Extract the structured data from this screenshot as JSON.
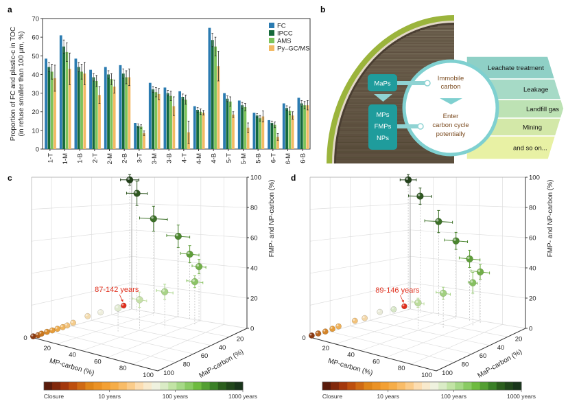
{
  "panels": {
    "a": "a",
    "b": "b",
    "c": "c",
    "d": "d"
  },
  "chart_data": [
    {
      "panel": "a",
      "type": "bar",
      "ylabel_line1": "Proportion of FC and plastic-c in TOC",
      "ylabel_line2": "(in refuse smaller than 100 μm, %)",
      "ylim": [
        0,
        70
      ],
      "yticks": [
        0,
        10,
        20,
        30,
        40,
        50,
        60,
        70
      ],
      "legend_position": "top-right",
      "categories": [
        "1-T",
        "1-M",
        "1-B",
        "2-T",
        "2-M",
        "2-B",
        "3-T",
        "3-M",
        "3-B",
        "4-T",
        "4-M",
        "4-B",
        "5-T",
        "5-M",
        "5-B",
        "6-T",
        "6-M",
        "6-B"
      ],
      "series": [
        {
          "name": "FC",
          "color": "#2b7bb1",
          "values": [
            48.5,
            61,
            48.5,
            42.5,
            44,
            45,
            14,
            35.5,
            33,
            31,
            23,
            65,
            30,
            26,
            19.5,
            15.5,
            24.5,
            27.5
          ],
          "err": [
            0,
            0,
            0,
            0,
            0,
            0,
            0,
            0,
            0,
            0,
            0,
            0,
            0,
            0,
            0,
            0,
            0,
            0
          ]
        },
        {
          "name": "IPCC",
          "color": "#15693a",
          "values": [
            44,
            55,
            44,
            38.5,
            40,
            40.5,
            12.5,
            32,
            30,
            28,
            21,
            58.5,
            27,
            23.5,
            18,
            14,
            22,
            24.5
          ],
          "err": [
            2.5,
            3.5,
            2.5,
            2,
            2,
            2.5,
            1,
            1.5,
            1.5,
            1.5,
            1.2,
            3.5,
            1.5,
            1.5,
            1,
            1,
            1.2,
            1.5
          ]
        },
        {
          "name": "AMS",
          "color": "#7cc35a",
          "values": [
            41.5,
            52,
            41.5,
            36.5,
            37.5,
            38.5,
            12,
            30.5,
            28.5,
            26.5,
            20,
            55,
            25.5,
            22.5,
            16.5,
            13,
            20.5,
            23.5
          ],
          "err": [
            4,
            5,
            4,
            3,
            3,
            3.5,
            1,
            2.5,
            2.5,
            2.5,
            1.5,
            5,
            2.5,
            2,
            1.5,
            1.5,
            2,
            2
          ]
        },
        {
          "name": "Py–GC/MS",
          "color": "#f3b964",
          "values": [
            38,
            43,
            40.5,
            29,
            33.5,
            38.5,
            8.5,
            29.5,
            23,
            9,
            19.5,
            44.5,
            18.5,
            11.5,
            17.5,
            6.5,
            18,
            23.5
          ],
          "err": [
            7,
            8.5,
            6,
            4.5,
            3.5,
            4.5,
            1.2,
            3,
            5,
            6,
            1.2,
            8,
            1.5,
            2.5,
            3,
            1.8,
            2,
            2.5
          ]
        }
      ]
    },
    {
      "panel": "c",
      "type": "scatter",
      "xlabel": "MP-carbon (%)",
      "ylabel": "MaP-carbon (%)",
      "zlabel": "FMP- and NP-carbon (%)",
      "xlim": [
        0,
        100
      ],
      "ylim": [
        0,
        100
      ],
      "zlim": [
        0,
        100
      ],
      "xticks": [
        0,
        20,
        40,
        60,
        80,
        100
      ],
      "yticks": [
        20,
        40,
        60,
        80,
        100
      ],
      "zticks": [
        0,
        20,
        40,
        60,
        80,
        100
      ],
      "annotation": "87-142 years",
      "points": [
        {
          "mp": 0.5,
          "map": 99,
          "fmp": 0.5,
          "color": "#8a3a12"
        },
        {
          "mp": 2,
          "map": 96,
          "fmp": 1,
          "color": "#b05a1a"
        },
        {
          "mp": 3.5,
          "map": 94.5,
          "fmp": 2,
          "color": "#c8761f"
        },
        {
          "mp": 5.5,
          "map": 91.5,
          "fmp": 3,
          "color": "#d88a2a"
        },
        {
          "mp": 7.5,
          "map": 88.7,
          "fmp": 3.8,
          "color": "#e59c3a"
        },
        {
          "mp": 9.5,
          "map": 86,
          "fmp": 4.7,
          "color": "#eba94a"
        },
        {
          "mp": 11.4,
          "map": 83,
          "fmp": 5.6,
          "color": "#f0b560"
        },
        {
          "mp": 13,
          "map": 80.5,
          "fmp": 6.5,
          "color": "#f2c27a"
        },
        {
          "mp": 15,
          "map": 77,
          "fmp": 7.9,
          "color": "#f4cc8c"
        },
        {
          "mp": 20,
          "map": 68.5,
          "fmp": 11.5,
          "color": "#f3dcb0"
        },
        {
          "mp": 25,
          "map": 61.5,
          "fmp": 13.5,
          "color": "#eeeedd"
        },
        {
          "mp": 32,
          "map": 52.3,
          "fmp": 15.7,
          "color": "#dfe9cf"
        },
        {
          "mp": 34,
          "map": 49,
          "fmp": 17,
          "color": "#e0301e",
          "highlight": true
        },
        {
          "mp": 40,
          "map": 40,
          "fmp": 20,
          "color": "#c6e0a8",
          "err": [
            6,
            5
          ]
        },
        {
          "mp": 50,
          "map": 26,
          "fmp": 24,
          "color": "#a9d488",
          "err": [
            7,
            5
          ]
        },
        {
          "mp": 62,
          "map": 9,
          "fmp": 29,
          "color": "#8cc466",
          "err": [
            7,
            4
          ]
        },
        {
          "mp": 60,
          "map": 2,
          "fmp": 38,
          "color": "#73b04a",
          "err": [
            6,
            5
          ]
        },
        {
          "mp": 52,
          "map": 2,
          "fmp": 46,
          "color": "#5f9e3a",
          "err": [
            8,
            6
          ]
        },
        {
          "mp": 42,
          "map": 2,
          "fmp": 58,
          "color": "#4b862e",
          "err": [
            10,
            8
          ]
        },
        {
          "mp": 24,
          "map": 6,
          "fmp": 70,
          "color": "#3c7028",
          "err": [
            12,
            9
          ]
        },
        {
          "mp": 8,
          "map": 4,
          "fmp": 88,
          "color": "#2e5620",
          "err": [
            9,
            9
          ]
        },
        {
          "mp": 0,
          "map": 2,
          "fmp": 98,
          "color": "#22401a",
          "err": [
            8,
            4
          ]
        }
      ]
    },
    {
      "panel": "d",
      "type": "scatter",
      "xlabel": "MP-carbon (%)",
      "ylabel": "MaP-carbon (%)",
      "zlabel": "FMP- and NP-carbon (%)",
      "xlim": [
        0,
        100
      ],
      "ylim": [
        0,
        100
      ],
      "zlim": [
        0,
        100
      ],
      "xticks": [
        0,
        20,
        40,
        60,
        80,
        100
      ],
      "yticks": [
        20,
        40,
        60,
        80,
        100
      ],
      "zticks": [
        0,
        20,
        40,
        60,
        80,
        100
      ],
      "annotation": "89-146 years",
      "points": [
        {
          "mp": 0.5,
          "map": 99,
          "fmp": 1,
          "color": "#8a3a12"
        },
        {
          "mp": 2.5,
          "map": 95,
          "fmp": 2,
          "color": "#b86420"
        },
        {
          "mp": 5,
          "map": 91,
          "fmp": 3,
          "color": "#d4852a"
        },
        {
          "mp": 7.5,
          "map": 87,
          "fmp": 4.5,
          "color": "#e59c3a"
        },
        {
          "mp": 10,
          "map": 84,
          "fmp": 6,
          "color": "#eeb058"
        },
        {
          "mp": 16,
          "map": 75,
          "fmp": 9,
          "color": "#f2c27a"
        },
        {
          "mp": 20,
          "map": 70,
          "fmp": 10.5,
          "color": "#f3d7a8"
        },
        {
          "mp": 26,
          "map": 62,
          "fmp": 14,
          "color": "#e9ead8"
        },
        {
          "mp": 31,
          "map": 54,
          "fmp": 15,
          "color": "#d6e6c6"
        },
        {
          "mp": 35,
          "map": 48,
          "fmp": 16.5,
          "color": "#e0301e",
          "highlight": true
        },
        {
          "mp": 40,
          "map": 40,
          "fmp": 18,
          "color": "#bcdc9c",
          "err": [
            5,
            3
          ]
        },
        {
          "mp": 50,
          "map": 26,
          "fmp": 23,
          "color": "#a2d080",
          "err": [
            6,
            4
          ]
        },
        {
          "mp": 64,
          "map": 12,
          "fmp": 29,
          "color": "#86c060",
          "err": [
            4,
            7
          ]
        },
        {
          "mp": 64,
          "map": 4,
          "fmp": 35,
          "color": "#72ae48",
          "err": [
            8,
            5
          ]
        },
        {
          "mp": 54,
          "map": 3,
          "fmp": 43,
          "color": "#5f9e3a",
          "err": [
            9,
            6
          ]
        },
        {
          "mp": 43,
          "map": 4,
          "fmp": 55,
          "color": "#4a852e",
          "err": [
            10,
            6
          ]
        },
        {
          "mp": 28,
          "map": 4,
          "fmp": 68,
          "color": "#3c7028",
          "err": [
            12,
            8
          ]
        },
        {
          "mp": 12,
          "map": 4,
          "fmp": 86,
          "color": "#2e5620",
          "err": [
            10,
            6
          ]
        },
        {
          "mp": 0,
          "map": 2,
          "fmp": 98,
          "color": "#22401a",
          "err": [
            7,
            4
          ]
        }
      ]
    }
  ],
  "colorbar": {
    "labels": [
      "Closure",
      "10 years",
      "100 years",
      "1000 years"
    ],
    "colors": [
      "#5a1c0c",
      "#9a300c",
      "#c4560f",
      "#de8418",
      "#f29a2c",
      "#f7b04c",
      "#fbca84",
      "#fde6c4",
      "#eef3e2",
      "#c8e6ac",
      "#9ad47a",
      "#6cba3c",
      "#3f8a2a",
      "#25521a",
      "#18341a"
    ]
  },
  "diagram_b": {
    "maps_label": "MaPs",
    "small_labels": [
      "MPs",
      "FMPs",
      "NPs"
    ],
    "immobile_line1": "Immobile",
    "immobile_line2": "carbon",
    "enter_line1": "Enter",
    "enter_line2": "carbon cycle",
    "enter_line3": "potentially",
    "pathways": [
      {
        "label": "Leachate treatment",
        "color": "#8fd0c6"
      },
      {
        "label": "Leakage",
        "color": "#a6dac6"
      },
      {
        "label": "Landfill gas",
        "color": "#bde2b4"
      },
      {
        "label": "Mining",
        "color": "#d3e8a8"
      },
      {
        "label": "and so on...",
        "color": "#e8f1a4"
      }
    ],
    "colors": {
      "teal_box": "#1f9c9c",
      "teal_light": "#8fd3d3",
      "rim": "#9bb43c",
      "soil": "#5e5040",
      "text_brown": "#7a4a1e"
    }
  }
}
